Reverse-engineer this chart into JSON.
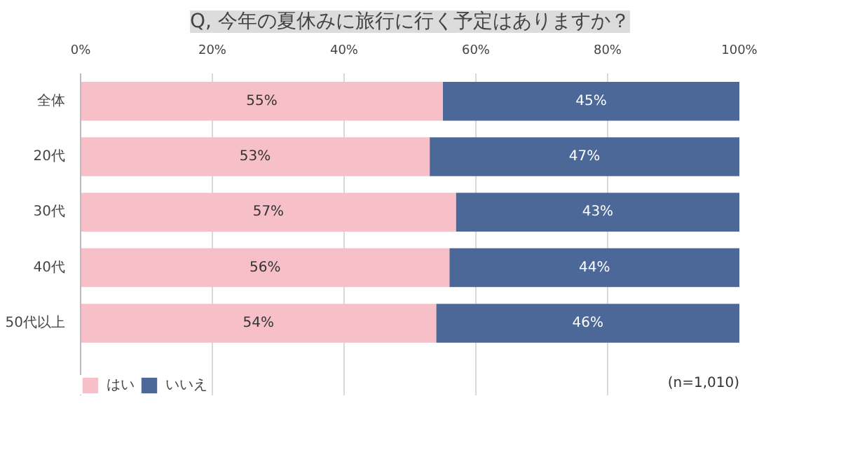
{
  "chart_data": {
    "type": "bar",
    "orientation": "horizontal",
    "stacked": true,
    "title": "Q, 今年の夏休みに旅行に行く予定はありますか？",
    "categories": [
      "全体",
      "20代",
      "30代",
      "40代",
      "50代以上"
    ],
    "series": [
      {
        "name": "はい",
        "color": "#f7bfc8",
        "values": [
          55,
          53,
          57,
          56,
          54
        ],
        "value_labels": [
          "55%",
          "53%",
          "57%",
          "56%",
          "54%"
        ]
      },
      {
        "name": "いいえ",
        "color": "#4b6898",
        "values": [
          45,
          47,
          43,
          44,
          46
        ],
        "value_labels": [
          "45%",
          "47%",
          "43%",
          "44%",
          "46%"
        ]
      }
    ],
    "xlim": [
      0,
      100
    ],
    "xticks": [
      {
        "value": 0,
        "label": "0%"
      },
      {
        "value": 20,
        "label": "20%"
      },
      {
        "value": 40,
        "label": "40%"
      },
      {
        "value": 60,
        "label": "60%"
      },
      {
        "value": 80,
        "label": "80%"
      },
      {
        "value": 100,
        "label": "100%"
      }
    ],
    "grid": "x",
    "legend": "bottom left",
    "annotations": [
      "(n=1,010)"
    ]
  }
}
